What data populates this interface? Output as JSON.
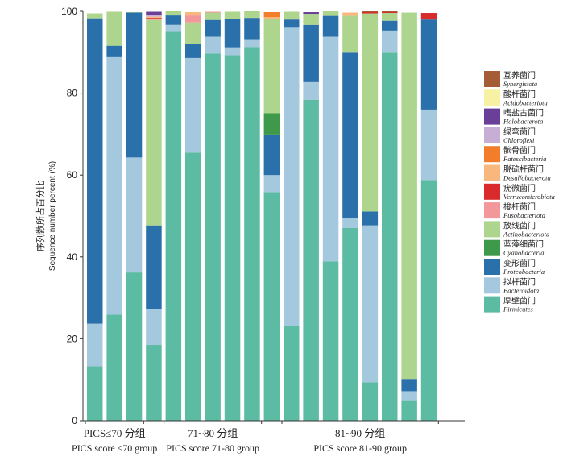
{
  "chart_data": {
    "type": "stacked-bar",
    "ylabel_cn": "序列数所占百分比",
    "ylabel_en": "Sequence number percent (%)",
    "ylim": [
      0,
      100
    ],
    "yticks": [
      0,
      20,
      40,
      60,
      80,
      100
    ],
    "groups": [
      {
        "label_cn": "PICS≤70 分组",
        "label_en": "PICS score ≤70 group",
        "start": 0,
        "end": 3
      },
      {
        "label_cn": "71~80 分组",
        "label_en": "PICS score 71-80 group",
        "start": 4,
        "end": 9
      },
      {
        "label_cn": "81~90 分组",
        "label_en": "PICS score 81-90 group",
        "start": 10,
        "end": 18
      }
    ],
    "series": [
      {
        "cn": "厚壁菌门",
        "en": "Firmicutes",
        "color": "#5cbba3",
        "values": [
          13.3,
          25.9,
          36.2,
          18.5,
          95.0,
          65.5,
          89.7,
          89.3,
          91.3,
          55.8,
          23.2,
          78.4,
          38.9,
          47.1,
          9.4,
          89.9,
          5.0,
          58.8
        ]
      },
      {
        "cn": "拟杆菌门",
        "en": "Bacteroidota",
        "color": "#a4c8dd",
        "values": [
          10.4,
          62.9,
          28.1,
          8.7,
          1.7,
          23.1,
          4.1,
          1.9,
          1.7,
          4.2,
          72.8,
          4.3,
          54.9,
          2.4,
          38.3,
          5.4,
          2.2,
          17.2
        ]
      },
      {
        "cn": "变形菌门",
        "en": "Proteobacteria",
        "color": "#2a70ab",
        "values": [
          74.6,
          2.8,
          35.4,
          20.5,
          2.3,
          3.5,
          4.1,
          6.9,
          5.4,
          9.9,
          2.0,
          14.0,
          5.1,
          40.4,
          3.4,
          2.4,
          3.0,
          22.0
        ]
      },
      {
        "cn": "蓝藻细菌门",
        "en": "Cyanobacteria",
        "color": "#3e9a4a",
        "values": [
          0,
          0,
          0,
          0,
          0,
          0,
          0,
          0,
          0,
          5.2,
          0,
          0,
          0,
          0,
          0,
          0,
          0,
          0
        ]
      },
      {
        "cn": "放线菌门",
        "en": "Actinobacteriota",
        "color": "#add58d",
        "values": [
          1.2,
          8.3,
          0.1,
          50.2,
          1.0,
          5.2,
          1.8,
          1.8,
          1.6,
          23.0,
          1.9,
          2.7,
          1.1,
          9.0,
          48.4,
          1.9,
          89.5,
          0
        ]
      },
      {
        "cn": "梭杆菌门",
        "en": "Fusobacteriota",
        "color": "#f3989a",
        "values": [
          0,
          0,
          0,
          0.3,
          0,
          1.7,
          0.2,
          0,
          0,
          0,
          0,
          0,
          0,
          0,
          0,
          0,
          0,
          0
        ]
      },
      {
        "cn": "疣微菌门",
        "en": "Verrucomicrobiota",
        "color": "#da2b2c",
        "values": [
          0,
          0,
          0,
          0.2,
          0,
          0,
          0,
          0,
          0,
          0,
          0,
          0,
          0,
          0,
          0.3,
          0.2,
          0,
          1.6
        ]
      },
      {
        "cn": "脱硫杆菌门",
        "en": "Desulfobacterota",
        "color": "#f8b87d",
        "values": [
          0,
          0,
          0,
          0.3,
          0,
          0.8,
          0,
          0,
          0,
          0.5,
          0,
          0,
          0,
          0.8,
          0,
          0,
          0,
          0
        ]
      },
      {
        "cn": "髌骨菌门",
        "en": "Patescibacteria",
        "color": "#f27e2c",
        "values": [
          0,
          0,
          0,
          0,
          0,
          0,
          0,
          0,
          0,
          1.2,
          0,
          0,
          0,
          0,
          0,
          0,
          0,
          0
        ]
      },
      {
        "cn": "绿弯菌门",
        "en": "Chloroflexi",
        "color": "#c6aed4",
        "values": [
          0,
          0,
          0,
          0.4,
          0,
          0,
          0,
          0,
          0,
          0,
          0,
          0,
          0,
          0,
          0,
          0,
          0,
          0
        ]
      },
      {
        "cn": "嗜盐古菌门",
        "en": "Halobacterota",
        "color": "#6a3f98",
        "values": [
          0,
          0,
          0,
          0.8,
          0,
          0,
          0,
          0,
          0,
          0,
          0,
          0.4,
          0,
          0,
          0,
          0,
          0,
          0
        ]
      },
      {
        "cn": "酸杆菌门",
        "en": "Acidobacteriota",
        "color": "#f7f2a3",
        "values": [
          0,
          0,
          0,
          0,
          0,
          0,
          0,
          0,
          0,
          0,
          0,
          0,
          0,
          0,
          0,
          0,
          0,
          0
        ]
      },
      {
        "cn": "互养菌门",
        "en": "Synergistota",
        "color": "#a55d36",
        "values": [
          0,
          0,
          0,
          0,
          0,
          0,
          0,
          0,
          0,
          0,
          0,
          0,
          0,
          0,
          0.2,
          0.2,
          0,
          0
        ]
      }
    ]
  }
}
